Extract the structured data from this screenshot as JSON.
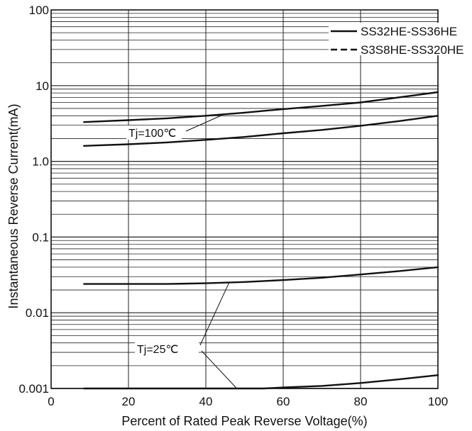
{
  "chart_data": {
    "type": "line",
    "xlabel": "Percent of Rated Peak Reverse Voltage(%)",
    "ylabel": "Instantaneous Reverse Current(mA)",
    "xlim": [
      0,
      100
    ],
    "ylim": [
      0.001,
      100
    ],
    "y_scale": "log",
    "x_ticks": [
      0,
      20,
      40,
      60,
      80,
      100
    ],
    "x_tick_labels": [
      "0",
      "20",
      "40",
      "60",
      "80",
      "100"
    ],
    "y_ticks": [
      0.001,
      0.01,
      0.1,
      1,
      10,
      100
    ],
    "y_tick_labels": [
      "0.001",
      "0.01",
      "0.1",
      "1.0",
      "10",
      "100"
    ],
    "grid": true,
    "legend": {
      "position": "top-right",
      "entries": [
        {
          "label": "SS32HE-SS36HE",
          "line_style": "solid"
        },
        {
          "label": "S3S8HE-SS320HE",
          "line_style": "dashed"
        }
      ]
    },
    "series": [
      {
        "temperature": "Tj=100℃",
        "x": [
          8.5,
          20,
          30,
          40,
          50,
          60,
          70,
          80,
          90,
          100
        ],
        "y": [
          3.3,
          3.5,
          3.7,
          4.0,
          4.4,
          4.9,
          5.4,
          6.0,
          7.0,
          8.2
        ]
      },
      {
        "temperature": "Tj=100℃",
        "x": [
          8.5,
          20,
          30,
          40,
          50,
          60,
          70,
          80,
          90,
          100
        ],
        "y": [
          1.6,
          1.68,
          1.78,
          1.92,
          2.1,
          2.35,
          2.6,
          2.95,
          3.4,
          4.0
        ]
      },
      {
        "temperature": "Tj=25℃",
        "x": [
          8.5,
          20,
          30,
          40,
          50,
          60,
          70,
          80,
          90,
          100
        ],
        "y": [
          0.024,
          0.024,
          0.024,
          0.0245,
          0.0255,
          0.027,
          0.029,
          0.032,
          0.0355,
          0.04
        ]
      },
      {
        "temperature": "Tj=25℃",
        "x": [
          8.5,
          20,
          30,
          40,
          50,
          55,
          60,
          70,
          80,
          90,
          100
        ],
        "y": [
          0.001,
          0.001,
          0.001,
          0.001,
          0.001,
          0.001,
          0.00103,
          0.00108,
          0.00118,
          0.00132,
          0.0015
        ]
      }
    ],
    "annotations": [
      {
        "text": "Tj=100℃",
        "points_to": "upper curves"
      },
      {
        "text": "Tj=25℃",
        "points_to": "lower curves"
      }
    ]
  }
}
